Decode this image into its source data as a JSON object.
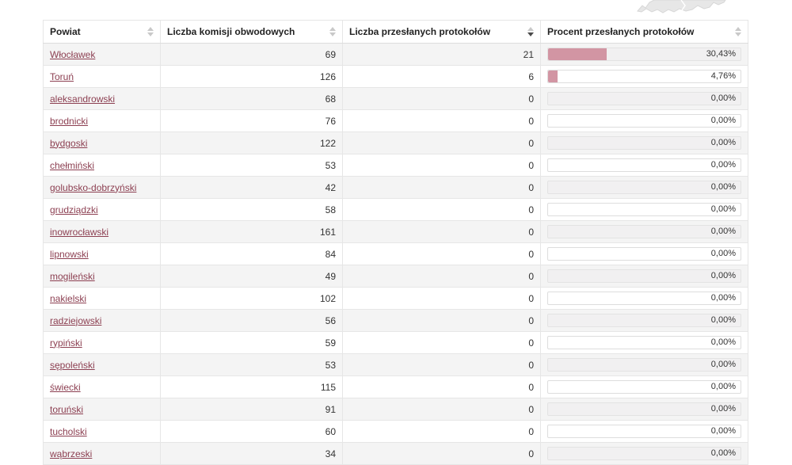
{
  "map": {
    "name": "voivodeship-map-bottom-fragment"
  },
  "colors": {
    "bar_fill": "#d295a3",
    "link": "#8c3f51",
    "row_alt_background": "#f4f4f4",
    "border": "#e6e6e6"
  },
  "table": {
    "columns": [
      {
        "label": "Powiat",
        "sort": "none"
      },
      {
        "label": "Liczba komisji obwodowych",
        "sort": "none"
      },
      {
        "label": "Liczba przesłanych protokołów",
        "sort": "desc"
      },
      {
        "label": "Procent przesłanych protokołów",
        "sort": "none"
      }
    ],
    "rows": [
      {
        "powiat": "Włocławek",
        "liczba_komisji": "69",
        "liczba_przeslanych": "21",
        "procent_label": "30,43%",
        "procent_value": 30.43
      },
      {
        "powiat": "Toruń",
        "liczba_komisji": "126",
        "liczba_przeslanych": "6",
        "procent_label": "4,76%",
        "procent_value": 4.76
      },
      {
        "powiat": "aleksandrowski",
        "liczba_komisji": "68",
        "liczba_przeslanych": "0",
        "procent_label": "0,00%",
        "procent_value": 0
      },
      {
        "powiat": "brodnicki",
        "liczba_komisji": "76",
        "liczba_przeslanych": "0",
        "procent_label": "0,00%",
        "procent_value": 0
      },
      {
        "powiat": "bydgoski",
        "liczba_komisji": "122",
        "liczba_przeslanych": "0",
        "procent_label": "0,00%",
        "procent_value": 0
      },
      {
        "powiat": "chełmiński",
        "liczba_komisji": "53",
        "liczba_przeslanych": "0",
        "procent_label": "0,00%",
        "procent_value": 0
      },
      {
        "powiat": "golubsko-dobrzyński",
        "liczba_komisji": "42",
        "liczba_przeslanych": "0",
        "procent_label": "0,00%",
        "procent_value": 0
      },
      {
        "powiat": "grudziądzki",
        "liczba_komisji": "58",
        "liczba_przeslanych": "0",
        "procent_label": "0,00%",
        "procent_value": 0
      },
      {
        "powiat": "inowrocławski",
        "liczba_komisji": "161",
        "liczba_przeslanych": "0",
        "procent_label": "0,00%",
        "procent_value": 0
      },
      {
        "powiat": "lipnowski",
        "liczba_komisji": "84",
        "liczba_przeslanych": "0",
        "procent_label": "0,00%",
        "procent_value": 0
      },
      {
        "powiat": "mogileński",
        "liczba_komisji": "49",
        "liczba_przeslanych": "0",
        "procent_label": "0,00%",
        "procent_value": 0
      },
      {
        "powiat": "nakielski",
        "liczba_komisji": "102",
        "liczba_przeslanych": "0",
        "procent_label": "0,00%",
        "procent_value": 0
      },
      {
        "powiat": "radziejowski",
        "liczba_komisji": "56",
        "liczba_przeslanych": "0",
        "procent_label": "0,00%",
        "procent_value": 0
      },
      {
        "powiat": "rypiński",
        "liczba_komisji": "59",
        "liczba_przeslanych": "0",
        "procent_label": "0,00%",
        "procent_value": 0
      },
      {
        "powiat": "sępoleński",
        "liczba_komisji": "53",
        "liczba_przeslanych": "0",
        "procent_label": "0,00%",
        "procent_value": 0
      },
      {
        "powiat": "świecki",
        "liczba_komisji": "115",
        "liczba_przeslanych": "0",
        "procent_label": "0,00%",
        "procent_value": 0
      },
      {
        "powiat": "toruński",
        "liczba_komisji": "91",
        "liczba_przeslanych": "0",
        "procent_label": "0,00%",
        "procent_value": 0
      },
      {
        "powiat": "tucholski",
        "liczba_komisji": "60",
        "liczba_przeslanych": "0",
        "procent_label": "0,00%",
        "procent_value": 0
      },
      {
        "powiat": "wąbrzeski",
        "liczba_komisji": "34",
        "liczba_przeslanych": "0",
        "procent_label": "0,00%",
        "procent_value": 0
      }
    ]
  }
}
